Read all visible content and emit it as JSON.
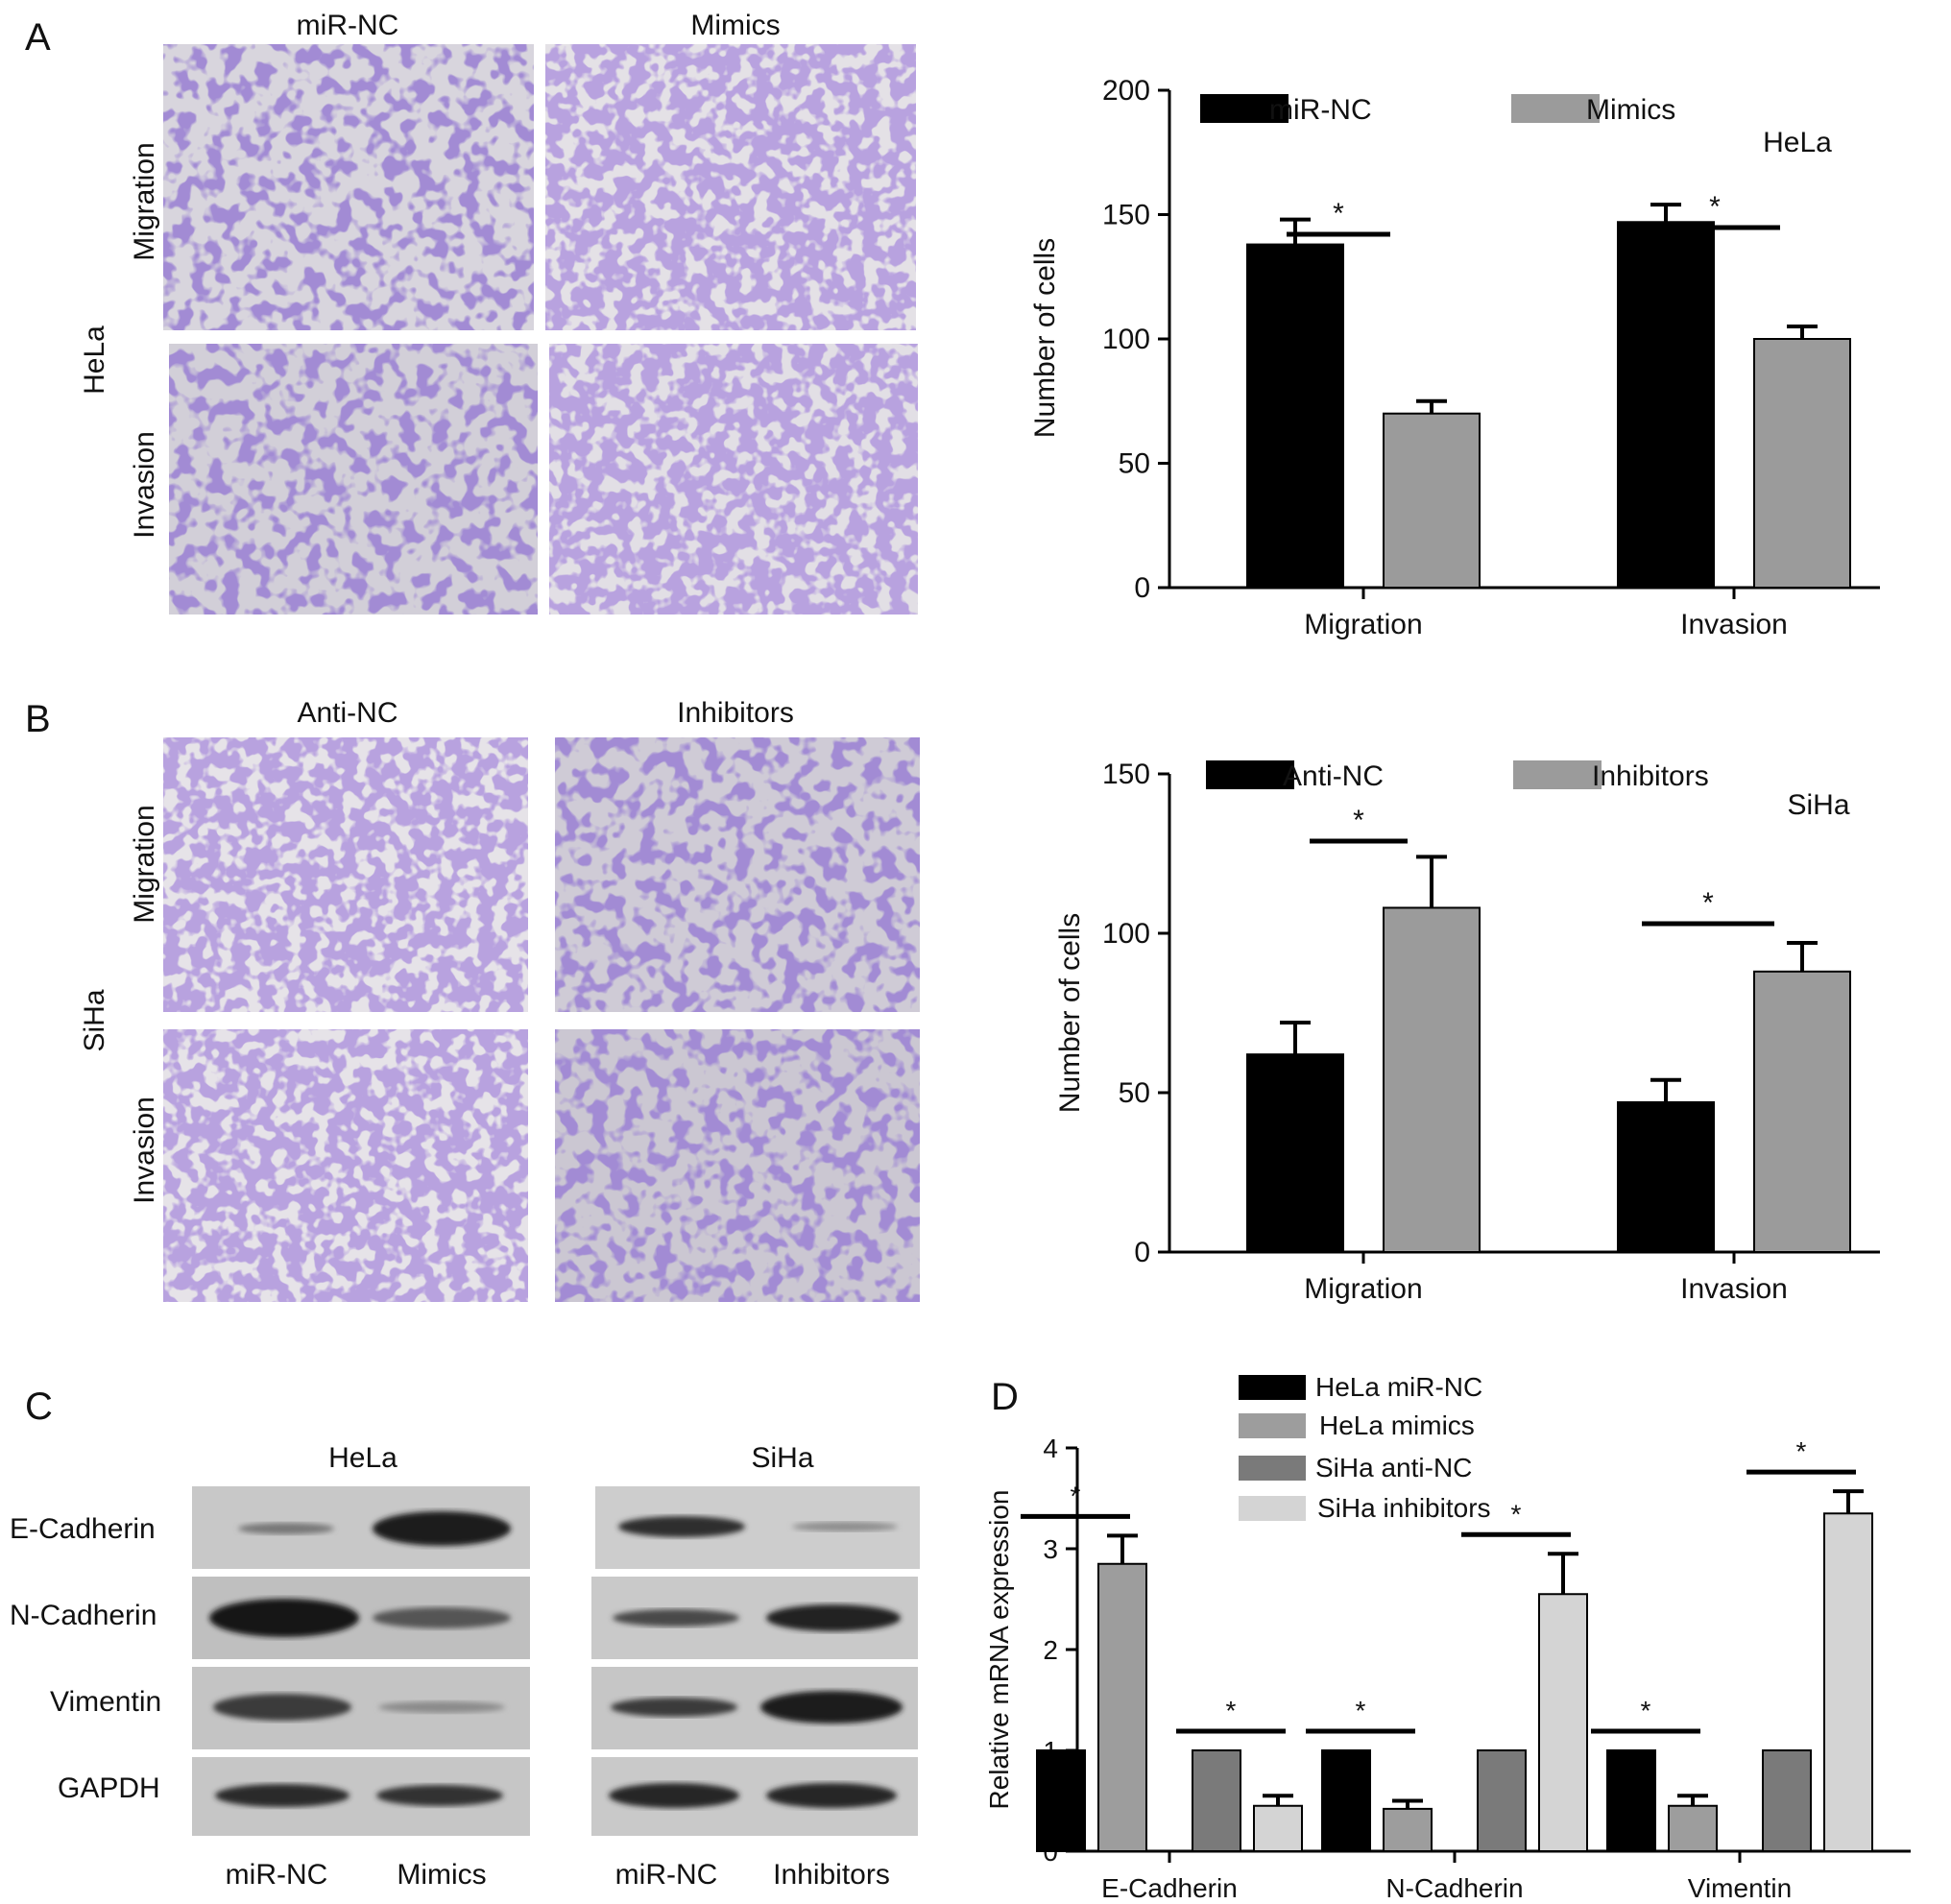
{
  "panels": {
    "A": {
      "letter": "A",
      "cell_line": "HeLa",
      "columns": [
        "miR-NC",
        "Mimics"
      ],
      "rows": [
        "Migration",
        "Invasion"
      ]
    },
    "B": {
      "letter": "B",
      "cell_line": "SiHa",
      "columns": [
        "Anti-NC",
        "Inhibitors"
      ],
      "rows": [
        "Migration",
        "Invasion"
      ]
    },
    "C": {
      "letter": "C",
      "groups": [
        {
          "title": "HeLa",
          "lanes": [
            "miR-NC",
            "Mimics"
          ]
        },
        {
          "title": "SiHa",
          "lanes": [
            "miR-NC",
            "Inhibitors"
          ]
        }
      ],
      "proteins": [
        "E-Cadherin",
        "N-Cadherin",
        "Vimentin",
        "GAPDH"
      ]
    },
    "D": {
      "letter": "D"
    }
  },
  "chart_data": [
    {
      "id": "A",
      "type": "bar",
      "annotation": "HeLa",
      "ylabel": "Number of cells",
      "ylim": [
        0,
        200
      ],
      "yticks": [
        0,
        50,
        100,
        150,
        200
      ],
      "categories": [
        "Migration",
        "Invasion"
      ],
      "series": [
        {
          "name": "miR-NC",
          "color": "#000000",
          "values": [
            138,
            147
          ],
          "errors": [
            10,
            7
          ]
        },
        {
          "name": "Mimics",
          "color": "#9b9b9b",
          "values": [
            70,
            100
          ],
          "errors": [
            5,
            5
          ]
        }
      ],
      "significance": [
        {
          "category": 0,
          "label": "*"
        },
        {
          "category": 1,
          "label": "*"
        }
      ],
      "legend": "top"
    },
    {
      "id": "B",
      "type": "bar",
      "annotation": "SiHa",
      "ylabel": "Number of cells",
      "ylim": [
        0,
        150
      ],
      "yticks": [
        0,
        50,
        100,
        150
      ],
      "categories": [
        "Migration",
        "Invasion"
      ],
      "series": [
        {
          "name": "Anti-NC",
          "color": "#000000",
          "values": [
            62,
            47
          ],
          "errors": [
            10,
            7
          ]
        },
        {
          "name": "Inhibitors",
          "color": "#9b9b9b",
          "values": [
            108,
            88
          ],
          "errors": [
            16,
            9
          ]
        }
      ],
      "significance": [
        {
          "category": 0,
          "label": "*"
        },
        {
          "category": 1,
          "label": "*"
        }
      ],
      "legend": "top"
    },
    {
      "id": "D",
      "type": "bar",
      "ylabel": "Relative mRNA expression",
      "ylim": [
        0,
        4
      ],
      "yticks": [
        0,
        1,
        2,
        3,
        4
      ],
      "categories": [
        "E-Cadherin",
        "N-Cadherin",
        "Vimentin"
      ],
      "series": [
        {
          "name": "HeLa miR-NC",
          "color": "#000000",
          "values": [
            1,
            1,
            1
          ],
          "errors": [
            0,
            0,
            0
          ]
        },
        {
          "name": "HeLa mimics",
          "color": "#9d9d9d",
          "values": [
            2.85,
            0.42,
            0.45
          ],
          "errors": [
            0.28,
            0.08,
            0.1
          ]
        },
        {
          "name": "SiHa anti-NC",
          "color": "#7a7a7a",
          "values": [
            1,
            1,
            1
          ],
          "errors": [
            0,
            0,
            0
          ]
        },
        {
          "name": "SiHa inhibitors",
          "color": "#d4d4d4",
          "values": [
            0.45,
            2.55,
            3.35
          ],
          "errors": [
            0.1,
            0.4,
            0.22
          ]
        }
      ],
      "significance": [
        {
          "category": 0,
          "pair": [
            0,
            1
          ],
          "label": "*"
        },
        {
          "category": 0,
          "pair": [
            2,
            3
          ],
          "label": "*"
        },
        {
          "category": 1,
          "pair": [
            0,
            1
          ],
          "label": "*"
        },
        {
          "category": 1,
          "pair": [
            2,
            3
          ],
          "label": "*"
        },
        {
          "category": 2,
          "pair": [
            0,
            1
          ],
          "label": "*"
        },
        {
          "category": 2,
          "pair": [
            2,
            3
          ],
          "label": "*"
        }
      ],
      "legend": "top-left"
    }
  ]
}
